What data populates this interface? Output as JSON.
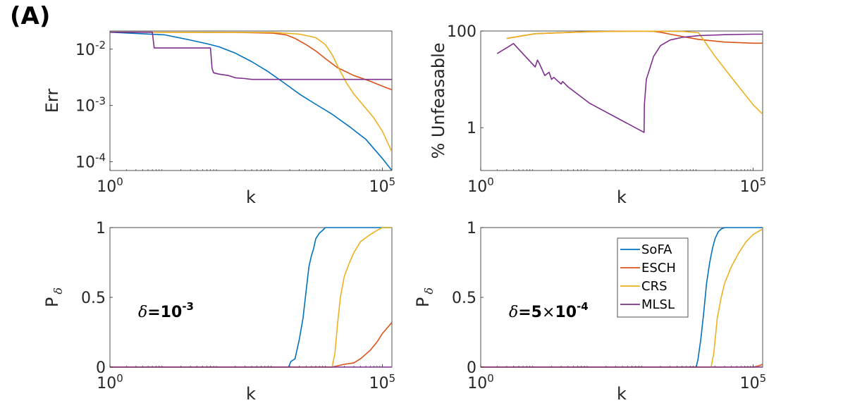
{
  "panel_label": "(A)",
  "chart_data": [
    {
      "id": "err",
      "type": "line",
      "xscale": "log",
      "yscale": "log",
      "xlim": [
        1,
        150000
      ],
      "ylim": [
        7e-05,
        0.021
      ],
      "xlabel": "k",
      "ylabel": "Err",
      "xticks": [
        {
          "v": 1,
          "base": "10",
          "exp": "0"
        },
        {
          "v": 100000,
          "base": "10",
          "exp": "5"
        }
      ],
      "yticks": [
        {
          "v": 0.0001,
          "base": "10",
          "exp": "-4"
        },
        {
          "v": 0.001,
          "base": "10",
          "exp": "-3"
        },
        {
          "v": 0.01,
          "base": "10",
          "exp": "-2"
        }
      ],
      "series": [
        {
          "name": "SoFA",
          "color": "#0072BD",
          "x": [
            1,
            10,
            30,
            60,
            100,
            200,
            400,
            800,
            1500,
            3000,
            6000,
            12000,
            25000,
            50000,
            100000,
            150000
          ],
          "y": [
            0.02,
            0.018,
            0.0145,
            0.0125,
            0.011,
            0.0085,
            0.006,
            0.004,
            0.0026,
            0.0016,
            0.00105,
            0.0007,
            0.00042,
            0.00025,
            0.000115,
            7e-05
          ]
        },
        {
          "name": "ESCH",
          "color": "#D95319",
          "x": [
            1,
            200,
            1000,
            1700,
            2500,
            4000,
            6000,
            9000,
            15000,
            30000,
            60000,
            100000,
            150000
          ],
          "y": [
            0.02,
            0.0198,
            0.0192,
            0.018,
            0.0155,
            0.012,
            0.0093,
            0.0068,
            0.0047,
            0.0034,
            0.0027,
            0.0022,
            0.0019
          ]
        },
        {
          "name": "CRS",
          "color": "#EDB120",
          "x": [
            1,
            1000,
            3000,
            6000,
            9000,
            12000,
            16000,
            22000,
            30000,
            45000,
            70000,
            100000,
            150000
          ],
          "y": [
            0.02,
            0.0198,
            0.0185,
            0.016,
            0.012,
            0.008,
            0.0045,
            0.0025,
            0.0016,
            0.001,
            0.0006,
            0.00035,
            0.00015
          ]
        },
        {
          "name": "MLSL",
          "color": "#7E2F8E",
          "x": [
            1,
            6,
            6.5,
            70,
            75,
            80,
            100,
            150,
            200,
            300,
            400,
            1000,
            150000
          ],
          "y": [
            0.02,
            0.02,
            0.0105,
            0.0105,
            0.0045,
            0.0038,
            0.0036,
            0.0034,
            0.0031,
            0.003,
            0.0029,
            0.0029,
            0.0029
          ]
        }
      ]
    },
    {
      "id": "unfeasable",
      "type": "line",
      "xscale": "log",
      "yscale": "log",
      "xlim": [
        1,
        150000
      ],
      "ylim": [
        0.13,
        100
      ],
      "xlabel": "k",
      "ylabel": "% Unfeasable",
      "xticks": [
        {
          "v": 1,
          "base": "10",
          "exp": "0"
        },
        {
          "v": 100000,
          "base": "10",
          "exp": "5"
        }
      ],
      "yticks": [
        {
          "v": 1,
          "label": "1"
        },
        {
          "v": 100,
          "label": "100"
        }
      ],
      "series": [
        {
          "name": "SoFA",
          "color": "#0072BD",
          "x": [],
          "y": []
        },
        {
          "name": "ESCH",
          "color": "#D95319",
          "x": [
            3,
            10,
            100,
            500,
            1000,
            1500,
            2000,
            3000,
            5000,
            10000,
            30000,
            100000,
            150000
          ],
          "y": [
            70,
            88,
            97,
            99,
            99,
            98,
            94,
            86,
            77,
            67,
            59,
            56,
            56
          ]
        },
        {
          "name": "CRS",
          "color": "#EDB120",
          "x": [
            3,
            10,
            100,
            1000,
            5000,
            10000,
            20000,
            50000,
            100000,
            150000
          ],
          "y": [
            70,
            88,
            97,
            99,
            98,
            92,
            30,
            8,
            3,
            1.9
          ]
        },
        {
          "name": "MLSL",
          "color": "#7E2F8E",
          "x": [
            2,
            3,
            4,
            10,
            11,
            12,
            15,
            18,
            20,
            22,
            30,
            32,
            40,
            100,
            1000,
            1010,
            1100,
            1500,
            2000,
            3000,
            5000,
            10000,
            30000,
            100000,
            150000
          ],
          "y": [
            34,
            45,
            55,
            18,
            25,
            21,
            12,
            14,
            10,
            11,
            8,
            9,
            7,
            3.2,
            0.8,
            3,
            10,
            30,
            50,
            65,
            74,
            80,
            84,
            86,
            86
          ]
        }
      ]
    },
    {
      "id": "p-delta-1e-3",
      "type": "line",
      "xscale": "log",
      "yscale": "linear",
      "xlim": [
        1,
        150000
      ],
      "ylim": [
        0,
        1
      ],
      "xlabel": "k",
      "ylabel": "P",
      "ylabel_sub": "δ",
      "xticks": [
        {
          "v": 1,
          "base": "10",
          "exp": "0"
        },
        {
          "v": 100000,
          "base": "10",
          "exp": "5"
        }
      ],
      "yticks": [
        {
          "v": 0,
          "label": "0"
        },
        {
          "v": 0.5,
          "label": "0.5"
        },
        {
          "v": 1,
          "label": "1"
        }
      ],
      "annotation": {
        "prefix": "δ",
        "eq": "=10",
        "exp": "-3"
      },
      "series": [
        {
          "name": "SoFA",
          "color": "#0072BD",
          "x": [
            1,
            1900,
            2100,
            2500,
            3000,
            3500,
            4000,
            4500,
            5000,
            5500,
            6000,
            7000,
            8000,
            9000,
            10000,
            150000
          ],
          "y": [
            0,
            0,
            0.04,
            0.06,
            0.2,
            0.35,
            0.55,
            0.72,
            0.8,
            0.85,
            0.92,
            0.96,
            0.98,
            1,
            1,
            1
          ]
        },
        {
          "name": "ESCH",
          "color": "#D95319",
          "x": [
            1,
            12000,
            20000,
            30000,
            40000,
            60000,
            80000,
            100000,
            150000
          ],
          "y": [
            0,
            0,
            0.02,
            0.03,
            0.06,
            0.12,
            0.18,
            0.24,
            0.32
          ]
        },
        {
          "name": "CRS",
          "color": "#EDB120",
          "x": [
            1,
            12000,
            13500,
            15000,
            17000,
            20000,
            25000,
            30000,
            40000,
            60000,
            80000,
            100000,
            150000
          ],
          "y": [
            0,
            0,
            0.1,
            0.3,
            0.5,
            0.65,
            0.75,
            0.82,
            0.9,
            0.95,
            0.98,
            1,
            1
          ]
        },
        {
          "name": "MLSL",
          "color": "#7E2F8E",
          "x": [
            1,
            150000
          ],
          "y": [
            0,
            0
          ]
        }
      ]
    },
    {
      "id": "p-delta-5e-4",
      "type": "line",
      "xscale": "log",
      "yscale": "linear",
      "xlim": [
        1,
        150000
      ],
      "ylim": [
        0,
        1
      ],
      "xlabel": "k",
      "ylabel": "P",
      "ylabel_sub": "δ",
      "xticks": [
        {
          "v": 1,
          "base": "10",
          "exp": "0"
        },
        {
          "v": 100000,
          "base": "10",
          "exp": "5"
        }
      ],
      "yticks": [
        {
          "v": 0,
          "label": "0"
        },
        {
          "v": 0.5,
          "label": "0.5"
        },
        {
          "v": 1,
          "label": "1"
        }
      ],
      "annotation": {
        "prefix": "δ",
        "eq": "=5",
        "mult": "×",
        "base": "10",
        "exp": "-4"
      },
      "series": [
        {
          "name": "SoFA",
          "color": "#0072BD",
          "x": [
            1,
            9000,
            9700,
            11000,
            12500,
            14000,
            16000,
            18000,
            20000,
            23000,
            26000,
            30000,
            150000
          ],
          "y": [
            0,
            0,
            0.05,
            0.2,
            0.4,
            0.6,
            0.75,
            0.85,
            0.92,
            0.97,
            0.99,
            1,
            1
          ]
        },
        {
          "name": "ESCH",
          "color": "#D95319",
          "x": [
            1,
            100000,
            130000,
            150000
          ],
          "y": [
            0,
            0,
            0.01,
            0.02
          ]
        },
        {
          "name": "CRS",
          "color": "#EDB120",
          "x": [
            1,
            17000,
            19000,
            22000,
            26000,
            30000,
            40000,
            55000,
            75000,
            100000,
            150000
          ],
          "y": [
            0,
            0,
            0.1,
            0.35,
            0.5,
            0.6,
            0.72,
            0.82,
            0.9,
            0.95,
            0.99
          ]
        },
        {
          "name": "MLSL",
          "color": "#7E2F8E",
          "x": [
            1,
            150000
          ],
          "y": [
            0,
            0
          ]
        }
      ],
      "legend": {
        "position": "top-right",
        "entries": [
          "SoFA",
          "ESCH",
          "CRS",
          "MLSL"
        ]
      }
    }
  ]
}
